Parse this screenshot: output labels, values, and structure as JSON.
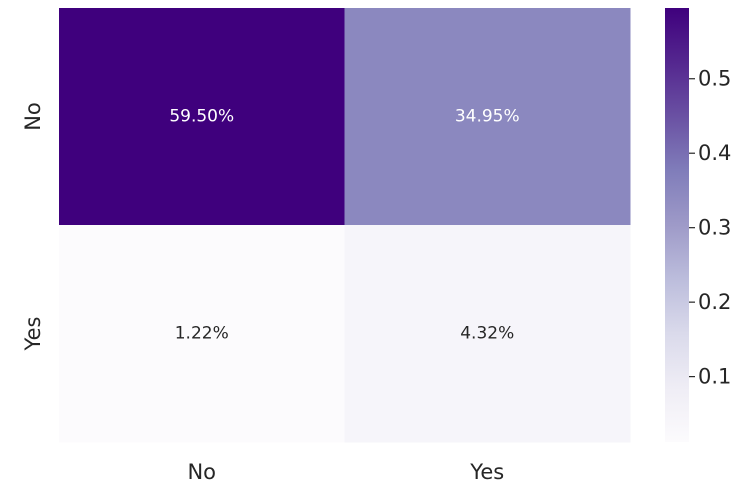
{
  "chart_data": {
    "type": "heatmap",
    "title": "",
    "xlabel": "",
    "ylabel": "",
    "x_categories": [
      "No",
      "Yes"
    ],
    "y_categories": [
      "No",
      "Yes"
    ],
    "values": [
      [
        0.595,
        0.3495
      ],
      [
        0.0122,
        0.0432
      ]
    ],
    "annotations": [
      [
        "59.50%",
        "34.95%"
      ],
      [
        "1.22%",
        "4.32%"
      ]
    ],
    "colormap": "Purples",
    "colorbar": {
      "range": [
        0.0122,
        0.595
      ],
      "ticks": [
        0.1,
        0.2,
        0.3,
        0.4,
        0.5
      ],
      "tick_labels": [
        "0.1",
        "0.2",
        "0.3",
        "0.4",
        "0.5"
      ],
      "placement": "right"
    },
    "grid": false
  }
}
